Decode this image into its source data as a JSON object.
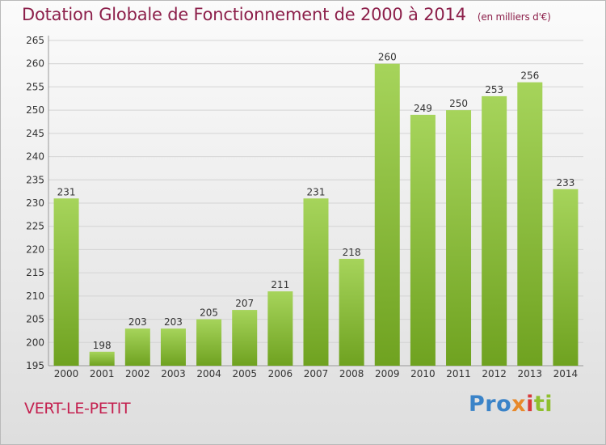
{
  "title": "Dotation Globale de Fonctionnement de 2000 à 2014",
  "unit": "(en milliers d'€)",
  "commune": "VERT-LE-PETIT",
  "logo": {
    "p1": "Pro",
    "p2": "x",
    "p3": "i",
    "p4": "ti"
  },
  "colors": {
    "bar_light": "#a6d45b",
    "bar_dark": "#6fa220",
    "title": "#8c1f4a",
    "commune": "#c4204f"
  },
  "chart_data": {
    "type": "bar",
    "title": "Dotation Globale de Fonctionnement de 2000 à 2014",
    "xlabel": "",
    "ylabel": "",
    "categories": [
      "2000",
      "2001",
      "2002",
      "2003",
      "2004",
      "2005",
      "2006",
      "2007",
      "2008",
      "2009",
      "2010",
      "2011",
      "2012",
      "2013",
      "2014"
    ],
    "values": [
      231,
      198,
      203,
      203,
      205,
      207,
      211,
      231,
      218,
      260,
      249,
      250,
      253,
      256,
      233
    ],
    "ylim": [
      195,
      265
    ],
    "yticks": [
      195,
      200,
      205,
      210,
      215,
      220,
      225,
      230,
      235,
      240,
      245,
      250,
      255,
      260,
      265
    ],
    "grid": true,
    "legend": "none"
  }
}
